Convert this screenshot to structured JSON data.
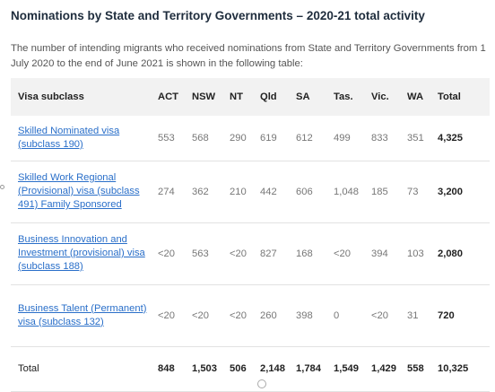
{
  "title": "Nominations by State and Territory Governments – 2020-21 total activity",
  "intro": "The number of intending migrants who received nominations from State and Territory Governments from 1 July 2020 to the end of June 2021 is shown in the following table:",
  "table": {
    "headers": [
      "Visa subclass",
      "ACT",
      "NSW",
      "NT",
      "Qld",
      "SA",
      "Tas.",
      "Vic.",
      "WA",
      "Total"
    ],
    "rows": [
      {
        "name": "Skilled Nominated visa (subclass 190)",
        "cells": [
          "553",
          "568",
          "290",
          "619",
          "612",
          "499",
          "833",
          "351"
        ],
        "total": "4,325"
      },
      {
        "name": "Skilled Work Regional (Provisional) visa (subclass 491) Family Sponsored",
        "cells": [
          "274",
          "362",
          "210",
          "442",
          "606",
          "1,048",
          "185",
          "73"
        ],
        "total": "3,200"
      },
      {
        "name": "Business Innovation and Investment (provisional) visa (subclass 188)",
        "cells": [
          "<20",
          "563",
          "<20",
          "827",
          "168",
          "<20",
          "394",
          "103"
        ],
        "total": "2,080"
      },
      {
        "name": "Business Talent (Permanent) visa (subclass 132)",
        "cells": [
          "<20",
          "<20",
          "<20",
          "260",
          "398",
          "0",
          "<20",
          "31"
        ],
        "total": "720"
      }
    ],
    "total_row": {
      "name": "Total",
      "cells": [
        "848",
        "1,503",
        "506",
        "2,148",
        "1,784",
        "1,549",
        "1,429",
        "558"
      ],
      "total": "10,325"
    }
  }
}
